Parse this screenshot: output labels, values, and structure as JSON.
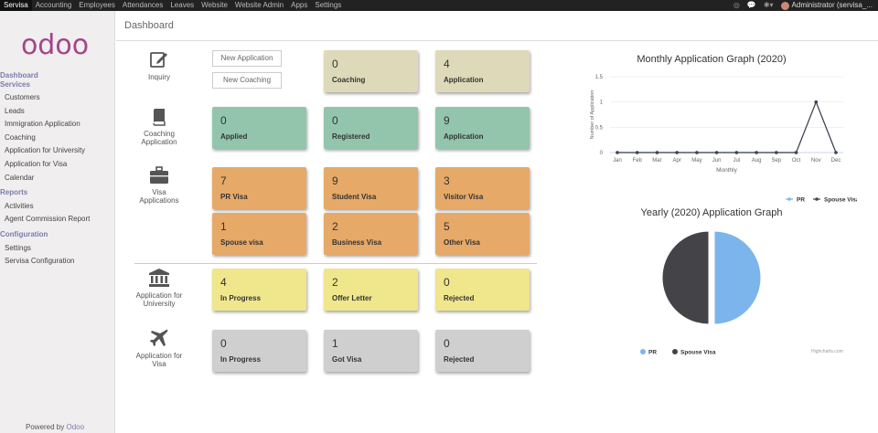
{
  "topbar": {
    "apps": [
      "Servisa",
      "Accounting",
      "Employees",
      "Attendances",
      "Leaves",
      "Website",
      "Website Admin",
      "Apps",
      "Settings"
    ],
    "user": "Administrator (servisa_..."
  },
  "sidebar": {
    "logo": "odoo",
    "sections": [
      {
        "title": "Dashboard"
      },
      {
        "title": "Services",
        "items": [
          "Customers",
          "Leads",
          "Immigration Application",
          "Coaching",
          "Application for University",
          "Application for Visa",
          "Calendar"
        ]
      },
      {
        "title": "Reports",
        "items": [
          "Activities",
          "Agent Commission Report"
        ]
      },
      {
        "title": "Configuration",
        "items": [
          "Settings",
          "Servisa Configuration"
        ]
      }
    ],
    "powered_by": "Powered by",
    "powered_brand": "Odoo"
  },
  "breadcrumb": "Dashboard",
  "rows": {
    "inquiry": {
      "label": "Inquiry",
      "buttons": [
        "New Application",
        "New Coaching"
      ],
      "tiles": [
        {
          "num": "0",
          "label": "Coaching"
        },
        {
          "num": "4",
          "label": "Application"
        }
      ]
    },
    "coaching": {
      "label1": "Coaching",
      "label2": "Application",
      "tiles": [
        {
          "num": "0",
          "label": "Applied"
        },
        {
          "num": "0",
          "label": "Registered"
        },
        {
          "num": "9",
          "label": "Application"
        }
      ]
    },
    "visa": {
      "label1": "Visa",
      "label2": "Applications",
      "tiles": [
        {
          "num": "7",
          "label": "PR Visa"
        },
        {
          "num": "9",
          "label": "Student Visa"
        },
        {
          "num": "3",
          "label": "Visitor Visa"
        },
        {
          "num": "1",
          "label": "Spouse visa"
        },
        {
          "num": "2",
          "label": "Business Visa"
        },
        {
          "num": "5",
          "label": "Other Visa"
        }
      ]
    },
    "university": {
      "label1": "Application for",
      "label2": "University",
      "tiles": [
        {
          "num": "4",
          "label": "In Progress"
        },
        {
          "num": "2",
          "label": "Offer Letter"
        },
        {
          "num": "0",
          "label": "Rejected"
        }
      ]
    },
    "visa_app": {
      "label1": "Application for",
      "label2": "Visa",
      "tiles": [
        {
          "num": "0",
          "label": "In Progress"
        },
        {
          "num": "1",
          "label": "Got Visa"
        },
        {
          "num": "0",
          "label": "Rejected"
        }
      ]
    }
  },
  "chart_data": [
    {
      "type": "line",
      "title": "Monthly Application Graph (2020)",
      "xlabel": "Monthly",
      "ylabel": "Number of Application",
      "categories": [
        "Jan",
        "Feb",
        "Mar",
        "Apr",
        "May",
        "Jun",
        "Jul",
        "Aug",
        "Sep",
        "Oct",
        "Nov",
        "Dec"
      ],
      "yticks": [
        "0",
        "0.5",
        "1",
        "1.5"
      ],
      "ylim": [
        0,
        1.5
      ],
      "series": [
        {
          "name": "PR",
          "color": "#7cb5ec",
          "values": [
            0,
            0,
            0,
            0,
            0,
            0,
            0,
            0,
            0,
            0,
            1,
            0
          ]
        },
        {
          "name": "Spouse Visa",
          "color": "#434348",
          "values": [
            0,
            0,
            0,
            0,
            0,
            0,
            0,
            0,
            0,
            0,
            1,
            0
          ]
        }
      ],
      "legend": "bottom"
    },
    {
      "type": "pie",
      "title": "Yearly (2020) Application Graph",
      "slices": [
        {
          "name": "PR",
          "value": 1,
          "color": "#7cb5ec"
        },
        {
          "name": "Spouse Visa",
          "value": 1,
          "color": "#434348"
        }
      ],
      "legend": "bottom",
      "credit": "Highcharts.com"
    }
  ]
}
